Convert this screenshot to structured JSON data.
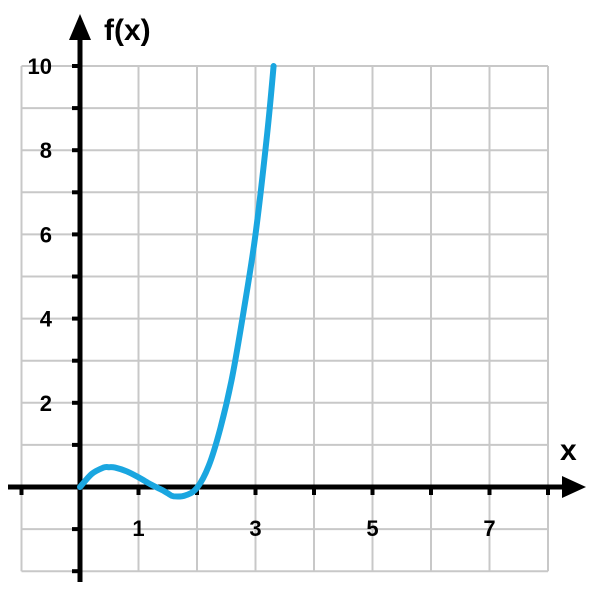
{
  "chart_data": {
    "type": "line",
    "title": "",
    "xlabel": "x",
    "ylabel": "f(x)",
    "xlim": [
      -1,
      8
    ],
    "ylim": [
      -2,
      10
    ],
    "x_tick_labels": [
      {
        "value": 1,
        "label": "1"
      },
      {
        "value": 3,
        "label": "3"
      },
      {
        "value": 5,
        "label": "5"
      },
      {
        "value": 7,
        "label": "7"
      }
    ],
    "y_tick_labels": [
      {
        "value": 2,
        "label": "2"
      },
      {
        "value": 4,
        "label": "4"
      },
      {
        "value": 6,
        "label": "6"
      },
      {
        "value": 8,
        "label": "8"
      },
      {
        "value": 10,
        "label": "10"
      }
    ],
    "grid": true,
    "series": [
      {
        "color": "#1aa6e0",
        "x": [
          0,
          0.2,
          0.4,
          0.5,
          0.6,
          0.8,
          1.0,
          1.2,
          1.4,
          1.5,
          1.6,
          1.8,
          2.0,
          2.2,
          2.4,
          2.6,
          2.8,
          3.0,
          3.2,
          3.31
        ],
        "y": [
          0,
          0.31,
          0.46,
          0.47,
          0.46,
          0.37,
          0.23,
          0.07,
          -0.07,
          -0.15,
          -0.22,
          -0.2,
          -0.02,
          0.5,
          1.4,
          2.6,
          4.2,
          6.0,
          8.4,
          10.0
        ]
      }
    ]
  }
}
